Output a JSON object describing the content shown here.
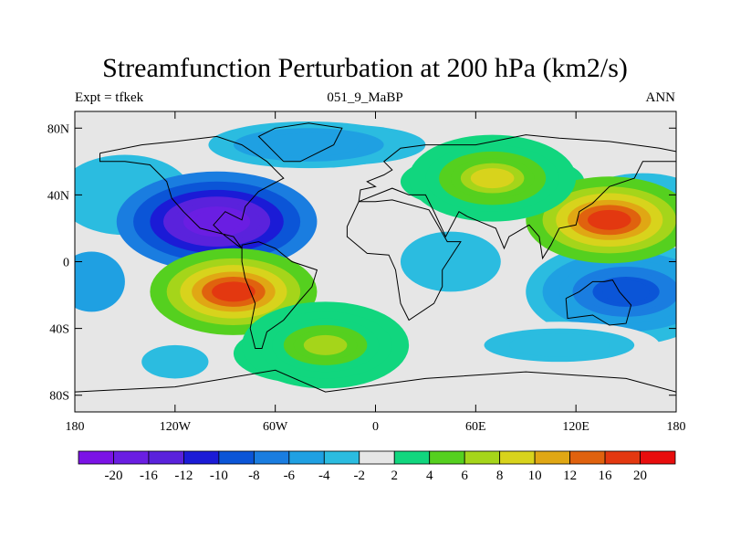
{
  "chart_data": {
    "type": "heatmap",
    "title": "Streamfunction Perturbation at 200 hPa (km2/s)",
    "left_string": "Expt = tfkek",
    "center_string": "051_9_MaBP",
    "right_string": "ANN",
    "xlim": [
      -180,
      180
    ],
    "ylim": [
      -90,
      90
    ],
    "x_ticks": [
      {
        "value": -180,
        "label": "180"
      },
      {
        "value": -120,
        "label": "120W"
      },
      {
        "value": -60,
        "label": "60W"
      },
      {
        "value": 0,
        "label": "0"
      },
      {
        "value": 60,
        "label": "60E"
      },
      {
        "value": 120,
        "label": "120E"
      },
      {
        "value": 180,
        "label": "180"
      }
    ],
    "y_ticks": [
      {
        "value": 80,
        "label": "80N"
      },
      {
        "value": 40,
        "label": "40N"
      },
      {
        "value": 0,
        "label": "0"
      },
      {
        "value": -40,
        "label": "40S"
      },
      {
        "value": -80,
        "label": "80S"
      }
    ],
    "colorbar": {
      "colors": [
        "#7b13e6",
        "#6a1ee2",
        "#5a22dc",
        "#1b1bd6",
        "#0b55d7",
        "#1a7de0",
        "#1fa0e2",
        "#2bbce0",
        "#e6e6e6",
        "#11d67e",
        "#55d01f",
        "#a5d51a",
        "#d8d31c",
        "#e0a714",
        "#e0620e",
        "#e33810",
        "#e80d0d"
      ],
      "labels": [
        "-20",
        "-16",
        "-12",
        "-10",
        "-8",
        "-6",
        "-4",
        "-2",
        "2",
        "4",
        "6",
        "8",
        "10",
        "12",
        "16",
        "20"
      ],
      "levels": [
        -20,
        -16,
        -12,
        -10,
        -8,
        -6,
        -4,
        -2,
        2,
        4,
        6,
        8,
        10,
        12,
        16,
        20
      ]
    },
    "features": [
      {
        "type": "negative-center",
        "lon": -95,
        "lat": 24,
        "peak": -20
      },
      {
        "type": "negative-center",
        "lon": 150,
        "lat": -18,
        "peak": -10
      },
      {
        "type": "positive-center",
        "lon": -85,
        "lat": -18,
        "peak": 16
      },
      {
        "type": "positive-center",
        "lon": 140,
        "lat": 25,
        "peak": 16
      },
      {
        "type": "positive-center",
        "lon": 70,
        "lat": 50,
        "peak": 8
      },
      {
        "type": "positive-center",
        "lon": -30,
        "lat": -50,
        "peak": 6
      },
      {
        "type": "negative-band",
        "lon": -40,
        "lat": 70,
        "peak": -6
      },
      {
        "type": "negative-band",
        "lon": 110,
        "lat": -50,
        "peak": -4
      }
    ],
    "grid": false
  }
}
